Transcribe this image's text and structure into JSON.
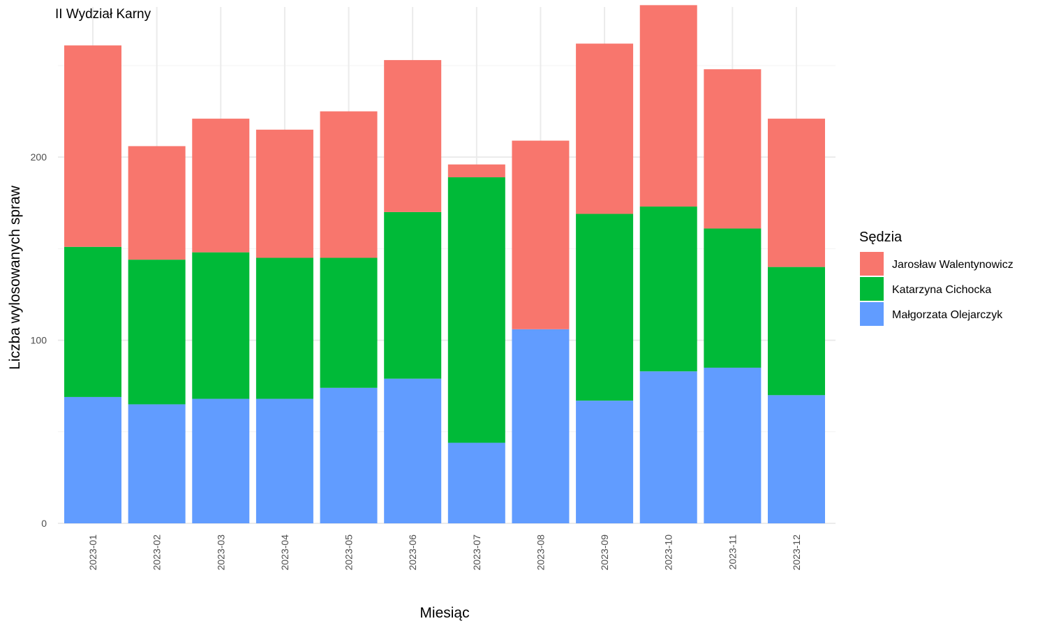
{
  "chart_data": {
    "type": "bar",
    "stacked": true,
    "title": "II Wydział Karny",
    "xlabel": "Miesiąc",
    "ylabel": "Liczba wylosowanych spraw",
    "ylim": [
      0,
      282
    ],
    "yticks": [
      0,
      100,
      200
    ],
    "grid": true,
    "legend_position": "right",
    "legend_title": "Sędzia",
    "categories": [
      "2023-01",
      "2023-02",
      "2023-03",
      "2023-04",
      "2023-05",
      "2023-06",
      "2023-07",
      "2023-08",
      "2023-09",
      "2023-10",
      "2023-11",
      "2023-12"
    ],
    "series": [
      {
        "name": "Jarosław Walentynowicz",
        "color": "#F8766D",
        "values": [
          110,
          62,
          73,
          70,
          80,
          83,
          7,
          103,
          93,
          110,
          87,
          81
        ]
      },
      {
        "name": "Katarzyna Cichocka",
        "color": "#00BA38",
        "values": [
          82,
          79,
          80,
          77,
          71,
          91,
          145,
          0,
          102,
          90,
          76,
          70
        ]
      },
      {
        "name": "Małgorzata Olejarczyk",
        "color": "#619CFF",
        "values": [
          69,
          65,
          68,
          68,
          74,
          79,
          44,
          106,
          67,
          83,
          85,
          70
        ]
      }
    ]
  }
}
